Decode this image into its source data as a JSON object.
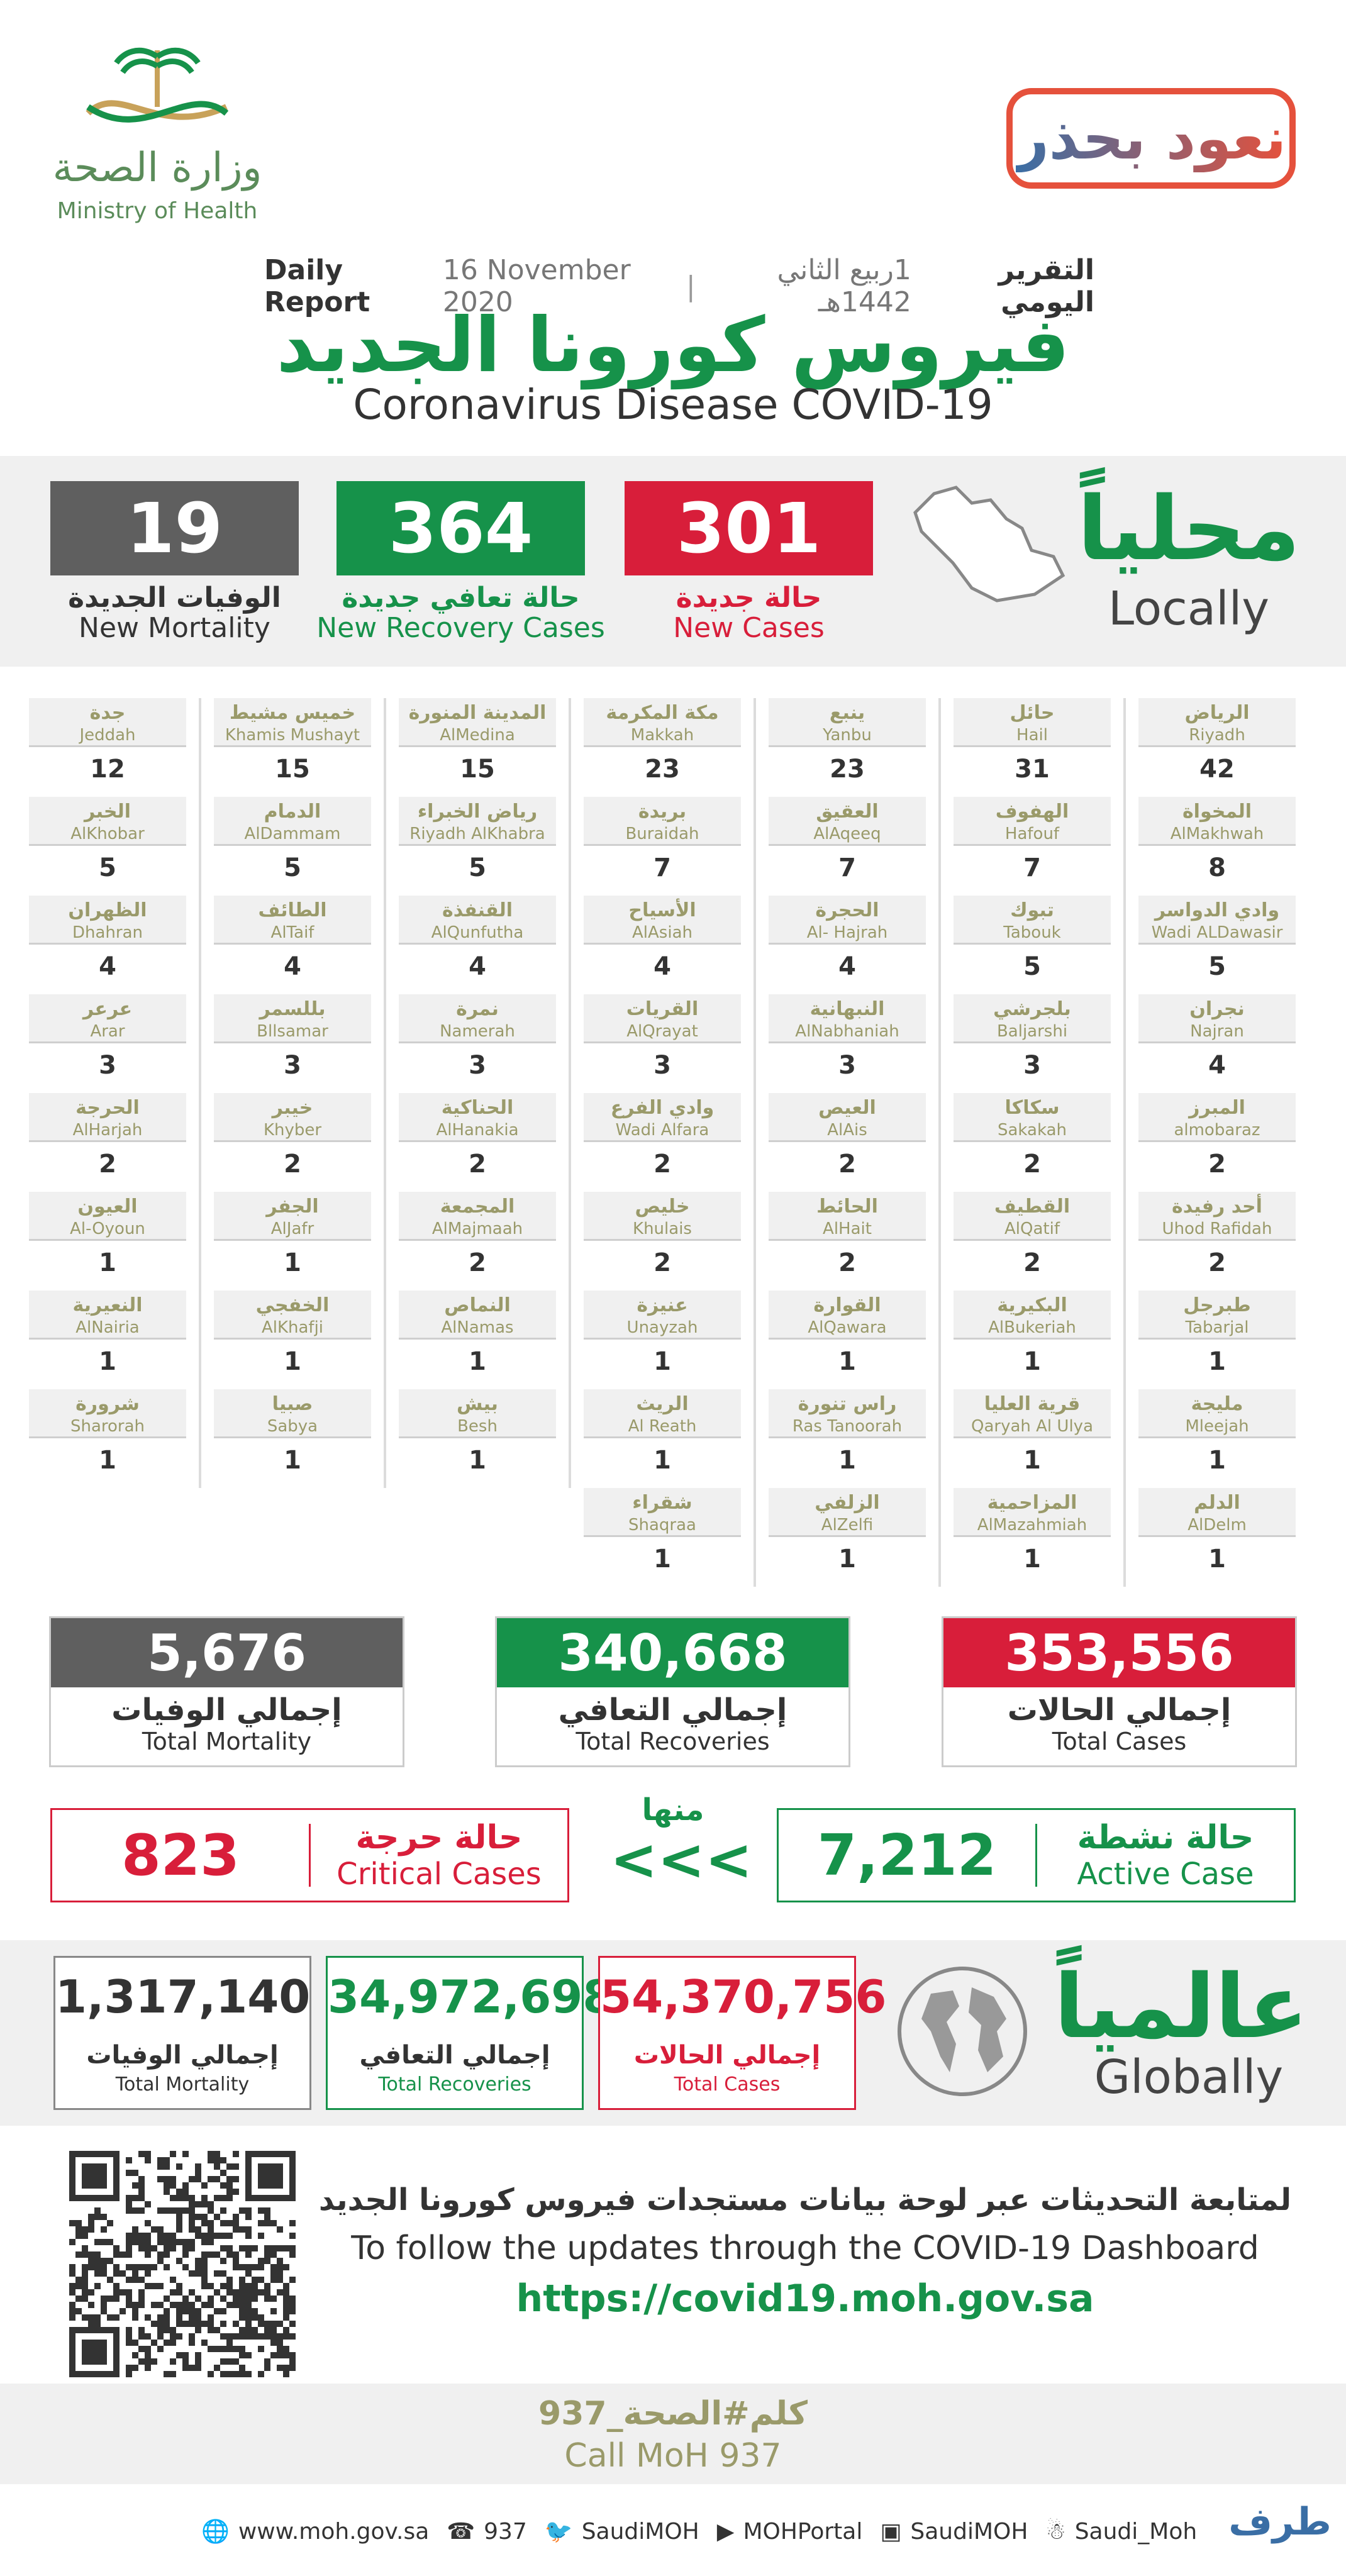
{
  "header": {
    "moh_name_ar": "وزارة الصحة",
    "moh_name_en": "Ministry of Health",
    "campaign": "نعود بحذر",
    "report_ar": "التقرير اليومي",
    "report_date_hijri": "1ربيع الثاني 1442هـ",
    "report_date": "16 November 2020",
    "report_en": "Daily Report",
    "title_ar": "فيروس كورونا الجديد",
    "title_en": "Coronavirus Disease COVID-19"
  },
  "locally": {
    "title_ar": "محلياً",
    "title_en": "Locally",
    "new_cases": {
      "value": "301",
      "label_ar": "حالة جديدة",
      "label_en": "New Cases"
    },
    "new_recovery": {
      "value": "364",
      "label_ar": "حالة تعافي جديدة",
      "label_en": "New Recovery Cases"
    },
    "new_mortality": {
      "value": "19",
      "label_ar": "الوفيات الجديدة",
      "label_en": "New Mortality"
    }
  },
  "cities": {
    "col1": [
      {
        "ar": "الرياض",
        "en": "Riyadh",
        "v": "42"
      },
      {
        "ar": "المخواة",
        "en": "AlMakhwah",
        "v": "8"
      },
      {
        "ar": "وادي الدواسر",
        "en": "Wadi ALDawasir",
        "v": "5"
      },
      {
        "ar": "نجران",
        "en": "Najran",
        "v": "4"
      },
      {
        "ar": "المبرز",
        "en": "almobaraz",
        "v": "2"
      },
      {
        "ar": "أحد رفيدة",
        "en": "Uhod Rafidah",
        "v": "2"
      },
      {
        "ar": "طبرجل",
        "en": "Tabarjal",
        "v": "1"
      },
      {
        "ar": "مليجة",
        "en": "Mleejah",
        "v": "1"
      },
      {
        "ar": "الدلم",
        "en": "AlDelm",
        "v": "1"
      }
    ],
    "col2": [
      {
        "ar": "حائل",
        "en": "Hail",
        "v": "31"
      },
      {
        "ar": "الهفوف",
        "en": "Hafouf",
        "v": "7"
      },
      {
        "ar": "تبوك",
        "en": "Tabouk",
        "v": "5"
      },
      {
        "ar": "بلجرشي",
        "en": "Baljarshi",
        "v": "3"
      },
      {
        "ar": "سكاكا",
        "en": "Sakakah",
        "v": "2"
      },
      {
        "ar": "القطيف",
        "en": "AlQatif",
        "v": "2"
      },
      {
        "ar": "البكيرية",
        "en": "AlBukeriah",
        "v": "1"
      },
      {
        "ar": "قرية العليا",
        "en": "Qaryah Al Ulya",
        "v": "1"
      },
      {
        "ar": "المزاحمية",
        "en": "AlMazahmiah",
        "v": "1"
      }
    ],
    "col3": [
      {
        "ar": "ينبع",
        "en": "Yanbu",
        "v": "23"
      },
      {
        "ar": "العقيق",
        "en": "AlAqeeq",
        "v": "7"
      },
      {
        "ar": "الحجرة",
        "en": "Al- Hajrah",
        "v": "4"
      },
      {
        "ar": "النبهانية",
        "en": "AlNabhaniah",
        "v": "3"
      },
      {
        "ar": "العيص",
        "en": "AlAis",
        "v": "2"
      },
      {
        "ar": "الحائط",
        "en": "AlHait",
        "v": "2"
      },
      {
        "ar": "القوارة",
        "en": "AlQawara",
        "v": "1"
      },
      {
        "ar": "راس تنورة",
        "en": "Ras Tanoorah",
        "v": "1"
      },
      {
        "ar": "الزلفي",
        "en": "AlZelfi",
        "v": "1"
      }
    ],
    "col4": [
      {
        "ar": "مكة المكرمة",
        "en": "Makkah",
        "v": "23"
      },
      {
        "ar": "بريدة",
        "en": "Buraidah",
        "v": "7"
      },
      {
        "ar": "الأسياح",
        "en": "AlAsiah",
        "v": "4"
      },
      {
        "ar": "القريات",
        "en": "AlQrayat",
        "v": "3"
      },
      {
        "ar": "وادي الفرع",
        "en": "Wadi Alfara",
        "v": "2"
      },
      {
        "ar": "خليص",
        "en": "Khulais",
        "v": "2"
      },
      {
        "ar": "عنيزة",
        "en": "Unayzah",
        "v": "1"
      },
      {
        "ar": "الريث",
        "en": "Al Reath",
        "v": "1"
      },
      {
        "ar": "شقراء",
        "en": "Shaqraa",
        "v": "1"
      }
    ],
    "col5": [
      {
        "ar": "المدينة المنورة",
        "en": "AlMedina",
        "v": "15"
      },
      {
        "ar": "رياض الخبراء",
        "en": "Riyadh AlKhabra",
        "v": "5"
      },
      {
        "ar": "القنفذة",
        "en": "AlQunfutha",
        "v": "4"
      },
      {
        "ar": "نمرة",
        "en": "Namerah",
        "v": "3"
      },
      {
        "ar": "الحناكية",
        "en": "AlHanakia",
        "v": "2"
      },
      {
        "ar": "المجمعة",
        "en": "AlMajmaah",
        "v": "2"
      },
      {
        "ar": "النماص",
        "en": "AlNamas",
        "v": "1"
      },
      {
        "ar": "بيش",
        "en": "Besh",
        "v": "1"
      }
    ],
    "col6": [
      {
        "ar": "خميس مشيط",
        "en": "Khamis Mushayt",
        "v": "15"
      },
      {
        "ar": "الدمام",
        "en": "AlDammam",
        "v": "5"
      },
      {
        "ar": "الطائف",
        "en": "AlTaif",
        "v": "4"
      },
      {
        "ar": "بللسمر",
        "en": "Bllsamar",
        "v": "3"
      },
      {
        "ar": "خيبر",
        "en": "Khyber",
        "v": "2"
      },
      {
        "ar": "الجفر",
        "en": "AlJafr",
        "v": "1"
      },
      {
        "ar": "الخفجي",
        "en": "AlKhafji",
        "v": "1"
      },
      {
        "ar": "صبيا",
        "en": "Sabya",
        "v": "1"
      }
    ],
    "col7": [
      {
        "ar": "جدة",
        "en": "Jeddah",
        "v": "12"
      },
      {
        "ar": "الخبر",
        "en": "AlKhobar",
        "v": "5"
      },
      {
        "ar": "الظهران",
        "en": "Dhahran",
        "v": "4"
      },
      {
        "ar": "عرعر",
        "en": "Arar",
        "v": "3"
      },
      {
        "ar": "الحرجة",
        "en": "AlHarjah",
        "v": "2"
      },
      {
        "ar": "العيون",
        "en": "Al-Oyoun",
        "v": "1"
      },
      {
        "ar": "النعيرية",
        "en": "AlNairia",
        "v": "1"
      },
      {
        "ar": "شرورة",
        "en": "Sharorah",
        "v": "1"
      }
    ]
  },
  "totals": {
    "cases": {
      "value": "353,556",
      "label_ar": "إجمالي الحالات",
      "label_en": "Total Cases"
    },
    "recoveries": {
      "value": "340,668",
      "label_ar": "إجمالي التعافي",
      "label_en": "Total Recoveries"
    },
    "mortality": {
      "value": "5,676",
      "label_ar": "إجمالي الوفيات",
      "label_en": "Total Mortality"
    }
  },
  "of_which": {
    "label_ar": "منها",
    "arrows": "<<<",
    "active": {
      "value": "7,212",
      "label_ar": "حالة نشطة",
      "label_en": "Active Case"
    },
    "critical": {
      "value": "823",
      "label_ar": "حالة حرجة",
      "label_en": "Critical Cases"
    }
  },
  "globally": {
    "title_ar": "عالمياً",
    "title_en": "Globally",
    "cases": {
      "value": "54,370,756",
      "label_ar": "إجمالي الحالات",
      "label_en": "Total Cases"
    },
    "recoveries": {
      "value": "34,972,698",
      "label_ar": "إجمالي التعافي",
      "label_en": "Total Recoveries"
    },
    "mortality": {
      "value": "1,317,140",
      "label_ar": "إجمالي الوفيات",
      "label_en": "Total Mortality"
    }
  },
  "dashboard": {
    "text_ar": "لمتابعة التحديثات عبر لوحة بيانات مستجدات فيروس كورونا الجديد",
    "text_en": "To follow the updates through the COVID-19 Dashboard",
    "url": "https://covid19.moh.gov.sa"
  },
  "call": {
    "ar": "كلم#الصحة_937",
    "en": "Call MoH 937"
  },
  "footer": {
    "links": [
      "www.moh.gov.sa",
      "937",
      "SaudiMOH",
      "MOHPortal",
      "SaudiMOH",
      "Saudi_Moh"
    ],
    "brand": "طرف"
  },
  "colors": {
    "red": "#d81e3a",
    "green": "#16924a",
    "gray": "#5f5f5f"
  }
}
